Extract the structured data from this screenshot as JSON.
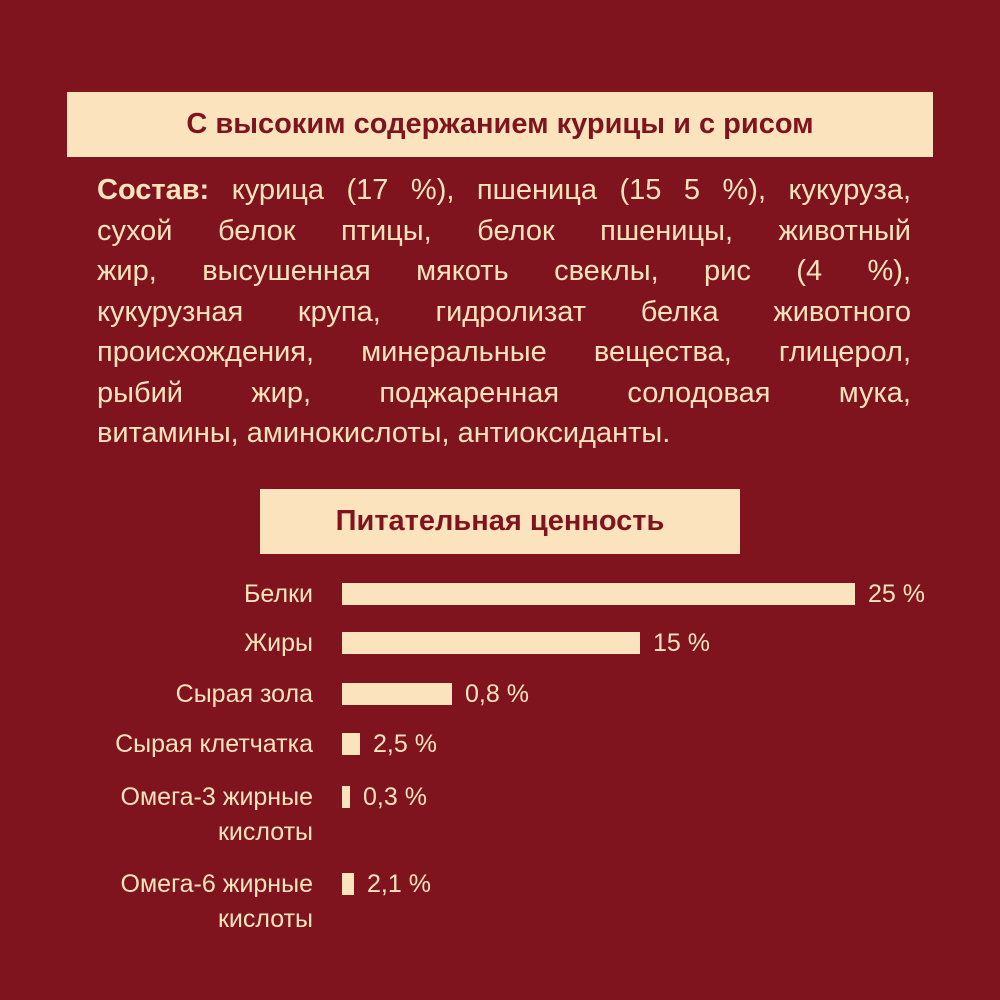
{
  "title": "С высоким содержанием курицы и с рисом",
  "composition": {
    "label": "Состав:",
    "lines": [
      " курица (17 %), пшеница (15 5 %), кукуруза,",
      "сухой белок птицы, белок пшеницы, животный",
      "жир, высушенная мякоть свеклы, рис (4 %),",
      "кукурузная крупа, гидролизат белка животного",
      "происхождения, минеральные вещества, глицерол,",
      "рыбий жир, поджаренная солодовая мука,",
      "витамины, аминокислоты, антиоксиданты."
    ]
  },
  "colors": {
    "background": "#7f141e",
    "accent": "#fbe3bd"
  },
  "chart_data": {
    "type": "bar",
    "title": "Питательная ценность",
    "orientation": "horizontal",
    "categories": [
      "Белки",
      "Жиры",
      "Сырая зола",
      "Сырая клетчатка",
      "Омега-3 жирные кислоты",
      "Омега-6 жирные кислоты"
    ],
    "category_lines": [
      [
        "Белки"
      ],
      [
        "Жиры"
      ],
      [
        "Сырая зола"
      ],
      [
        "Сырая клетчатка"
      ],
      [
        "Омега-3 жирные",
        "кислоты"
      ],
      [
        "Омега-6 жирные",
        "кислоты"
      ]
    ],
    "values": [
      25,
      15,
      0.8,
      2.5,
      0.3,
      2.1
    ],
    "value_labels": [
      "25 %",
      "15 %",
      "0,8 %",
      "2,5 %",
      "0,3 %",
      "2,1 %"
    ],
    "unit": "%",
    "grid": false
  }
}
